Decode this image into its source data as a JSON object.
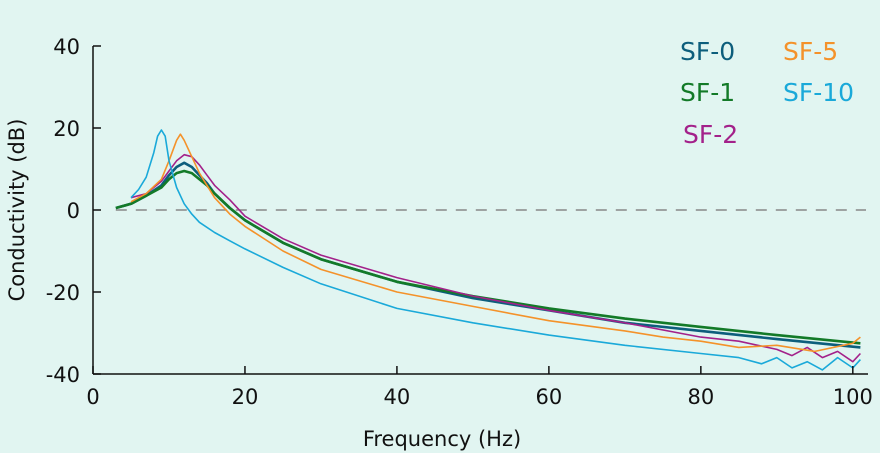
{
  "chart_data": {
    "type": "line",
    "title": "",
    "xlabel": "Frequency (Hz)",
    "ylabel": "Conductivity (dB)",
    "xlim": [
      0,
      102
    ],
    "ylim": [
      -40,
      40
    ],
    "xticks": [
      "0",
      "20",
      "40",
      "60",
      "80",
      "100"
    ],
    "yticks": [
      "40",
      "20",
      "0",
      "-20",
      "-40"
    ],
    "reference_line": {
      "y": 0,
      "style": "dashed",
      "color": "#888888"
    },
    "grid": false,
    "legend_position": "top-right",
    "series": [
      {
        "name": "SF-0",
        "color": "#0d5e7c",
        "x": [
          3,
          5,
          7,
          9,
          10,
          11,
          12,
          13,
          14,
          15,
          16,
          18,
          20,
          25,
          30,
          40,
          50,
          60,
          70,
          80,
          90,
          101
        ],
        "y": [
          0.5,
          1.5,
          3.5,
          6,
          8.5,
          10.5,
          11.5,
          10.5,
          8.5,
          6.5,
          4,
          0.5,
          -2.5,
          -8,
          -12,
          -17.5,
          -21.5,
          -24.5,
          -27.5,
          -29.5,
          -31.5,
          -33.5
        ]
      },
      {
        "name": "SF-1",
        "color": "#137a28",
        "x": [
          3,
          5,
          7,
          9,
          10,
          11,
          12,
          13,
          14,
          15,
          16,
          18,
          20,
          25,
          30,
          40,
          50,
          60,
          70,
          80,
          90,
          101
        ],
        "y": [
          0.5,
          1.5,
          3.5,
          5.5,
          7.5,
          9,
          9.5,
          9,
          7.5,
          6,
          4,
          0.5,
          -2.5,
          -8,
          -12,
          -17.5,
          -21,
          -24,
          -26.5,
          -28.5,
          -30.5,
          -32.5
        ]
      },
      {
        "name": "SF-2",
        "color": "#a3218a",
        "x": [
          5,
          7,
          9,
          10,
          11,
          12,
          13,
          14,
          15,
          16,
          18,
          20,
          25,
          30,
          40,
          50,
          60,
          70,
          80,
          85,
          90,
          92,
          94,
          96,
          98,
          100,
          101
        ],
        "y": [
          3,
          4,
          7,
          9.5,
          12,
          13.5,
          13,
          11,
          8.5,
          6,
          2.5,
          -1.5,
          -7,
          -11,
          -16.5,
          -21,
          -24.5,
          -27.5,
          -31,
          -32,
          -34,
          -35.5,
          -33.5,
          -36,
          -34.5,
          -37,
          -35
        ]
      },
      {
        "name": "SF-5",
        "color": "#f4922a",
        "x": [
          5,
          7,
          9,
          10,
          11,
          11.5,
          12,
          13,
          14,
          15,
          16,
          18,
          20,
          25,
          30,
          40,
          50,
          60,
          70,
          75,
          80,
          85,
          90,
          95,
          100,
          101
        ],
        "y": [
          2,
          4,
          7.5,
          12,
          17,
          18.5,
          17,
          13,
          9,
          6,
          3,
          -1,
          -4,
          -10,
          -14.5,
          -20,
          -23.5,
          -27,
          -29.5,
          -31,
          -32,
          -33.5,
          -33,
          -34.5,
          -32.5,
          -31
        ]
      },
      {
        "name": "SF-10",
        "color": "#1aa9d9",
        "x": [
          5,
          6,
          7,
          8,
          8.5,
          9,
          9.5,
          10,
          11,
          12,
          13,
          14,
          16,
          18,
          20,
          25,
          30,
          40,
          50,
          60,
          70,
          80,
          85,
          88,
          90,
          92,
          94,
          96,
          98,
          100,
          101
        ],
        "y": [
          3,
          5,
          8,
          14,
          18,
          19.5,
          18,
          12,
          5.5,
          1.5,
          -1,
          -3,
          -5.5,
          -7.5,
          -9.5,
          -14,
          -18,
          -24,
          -27.5,
          -30.5,
          -33,
          -35,
          -36,
          -37.5,
          -36,
          -38.5,
          -37,
          -39,
          -36,
          -38.5,
          -36.5
        ]
      }
    ]
  }
}
